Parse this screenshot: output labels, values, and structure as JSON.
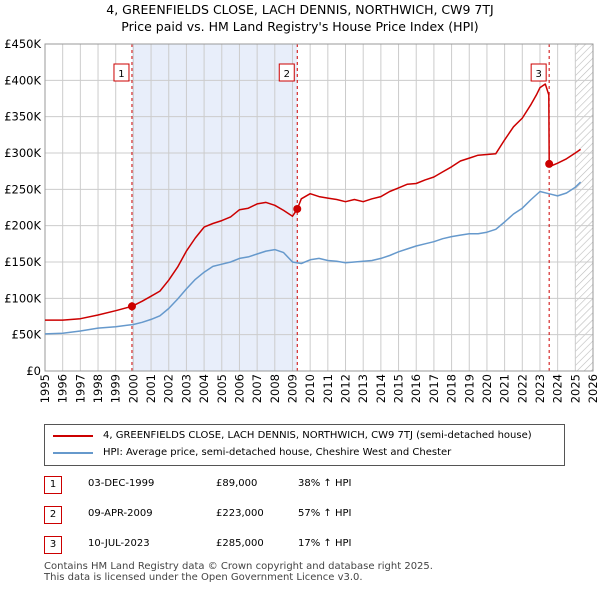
{
  "title_line1": "4, GREENFIELDS CLOSE, LACH DENNIS, NORTHWICH, CW9 7TJ",
  "title_line2": "Price paid vs. HM Land Registry's House Price Index (HPI)",
  "colors": {
    "property": "#cc0000",
    "hpi": "#6699cc",
    "shade": "#e8eefa",
    "hatch": "#bbbbbb",
    "grid": "#cccccc"
  },
  "chart_data": {
    "type": "line",
    "title": "4, GREENFIELDS CLOSE, LACH DENNIS, NORTHWICH, CW9 7TJ",
    "subtitle": "Price paid vs. HM Land Registry's House Price Index (HPI)",
    "xlim": [
      1995,
      2026
    ],
    "ylim": [
      0,
      450000
    ],
    "yticks": [
      0,
      50000,
      100000,
      150000,
      200000,
      250000,
      300000,
      350000,
      400000,
      450000
    ],
    "ytick_labels": [
      "£0",
      "£50K",
      "£100K",
      "£150K",
      "£200K",
      "£250K",
      "£300K",
      "£350K",
      "£400K",
      "£450K"
    ],
    "xticks": [
      1995,
      1996,
      1997,
      1998,
      1999,
      2000,
      2001,
      2002,
      2003,
      2004,
      2005,
      2006,
      2007,
      2008,
      2009,
      2010,
      2011,
      2012,
      2013,
      2014,
      2015,
      2016,
      2017,
      2018,
      2019,
      2020,
      2021,
      2022,
      2023,
      2024,
      2025,
      2026
    ],
    "xtick_labels": [
      "1995",
      "1996",
      "1997",
      "1998",
      "1999",
      "2000",
      "2001",
      "2002",
      "2003",
      "2004",
      "2005",
      "2006",
      "2007",
      "2008",
      "2009",
      "2010",
      "2011",
      "2012",
      "2013",
      "2014",
      "2015",
      "2016",
      "2017",
      "2018",
      "2019",
      "2020",
      "2021",
      "2022",
      "2023",
      "2024",
      "2025",
      "2026"
    ],
    "shaded_range": [
      1999.92,
      2009.27
    ],
    "hatched_from": 2025.0,
    "series": [
      {
        "name": "4, GREENFIELDS CLOSE, LACH DENNIS, NORTHWICH, CW9 7TJ (semi-detached house)",
        "color": "#cc0000",
        "x": [
          1995.0,
          1996.0,
          1997.0,
          1998.0,
          1999.0,
          1999.92,
          2000.5,
          2001.0,
          2001.5,
          2002.0,
          2002.5,
          2003.0,
          2003.5,
          2004.0,
          2004.5,
          2005.0,
          2005.5,
          2006.0,
          2006.5,
          2007.0,
          2007.5,
          2008.0,
          2008.5,
          2009.0,
          2009.27,
          2009.5,
          2010.0,
          2010.5,
          2011.0,
          2011.5,
          2012.0,
          2012.5,
          2013.0,
          2013.5,
          2014.0,
          2014.5,
          2015.0,
          2015.5,
          2016.0,
          2016.5,
          2017.0,
          2017.5,
          2018.0,
          2018.5,
          2019.0,
          2019.5,
          2020.0,
          2020.5,
          2021.0,
          2021.5,
          2022.0,
          2022.5,
          2022.8,
          2023.0,
          2023.3,
          2023.5,
          2023.52,
          2023.7,
          2024.0,
          2024.5,
          2025.0,
          2025.3
        ],
        "values": [
          70000,
          70000,
          72000,
          77000,
          83000,
          89000,
          96000,
          103000,
          110000,
          125000,
          143000,
          165000,
          183000,
          198000,
          203000,
          207000,
          212000,
          222000,
          224000,
          230000,
          232000,
          228000,
          221000,
          213000,
          223000,
          237000,
          244000,
          240000,
          238000,
          236000,
          233000,
          236000,
          233000,
          237000,
          240000,
          247000,
          252000,
          257000,
          258000,
          263000,
          267000,
          274000,
          281000,
          289000,
          293000,
          297000,
          298000,
          299000,
          318000,
          336000,
          348000,
          367000,
          380000,
          390000,
          395000,
          380000,
          285000,
          283000,
          286000,
          292000,
          300000,
          305000
        ]
      },
      {
        "name": "HPI: Average price, semi-detached house, Cheshire West and Chester",
        "color": "#6699cc",
        "x": [
          1995.0,
          1996.0,
          1997.0,
          1998.0,
          1999.0,
          2000.0,
          2000.5,
          2001.0,
          2001.5,
          2002.0,
          2002.5,
          2003.0,
          2003.5,
          2004.0,
          2004.5,
          2005.0,
          2005.5,
          2006.0,
          2006.5,
          2007.0,
          2007.5,
          2008.0,
          2008.5,
          2009.0,
          2009.5,
          2010.0,
          2010.5,
          2011.0,
          2011.5,
          2012.0,
          2012.5,
          2013.0,
          2013.5,
          2014.0,
          2014.5,
          2015.0,
          2015.5,
          2016.0,
          2016.5,
          2017.0,
          2017.5,
          2018.0,
          2018.5,
          2019.0,
          2019.5,
          2020.0,
          2020.5,
          2021.0,
          2021.5,
          2022.0,
          2022.5,
          2023.0,
          2023.5,
          2024.0,
          2024.5,
          2025.0,
          2025.3
        ],
        "values": [
          51000,
          52000,
          55000,
          59000,
          61000,
          64000,
          67000,
          71000,
          76000,
          86000,
          99000,
          113000,
          126000,
          136000,
          144000,
          147000,
          150000,
          155000,
          157000,
          161000,
          165000,
          167000,
          163000,
          150000,
          148000,
          153000,
          155000,
          152000,
          151000,
          149000,
          150000,
          151000,
          152000,
          155000,
          159000,
          164000,
          168000,
          172000,
          175000,
          178000,
          182000,
          185000,
          187000,
          189000,
          189000,
          191000,
          195000,
          205000,
          216000,
          224000,
          236000,
          247000,
          244000,
          241000,
          245000,
          253000,
          260000
        ]
      }
    ],
    "sales": [
      {
        "id": "1",
        "x": 1999.92,
        "value": 89000,
        "date": "03-DEC-1999",
        "price": "£89,000",
        "hpi": "38% ↑ HPI"
      },
      {
        "id": "2",
        "x": 2009.27,
        "value": 223000,
        "date": "09-APR-2009",
        "price": "£223,000",
        "hpi": "57% ↑ HPI"
      },
      {
        "id": "3",
        "x": 2023.52,
        "value": 285000,
        "date": "10-JUL-2023",
        "price": "£285,000",
        "hpi": "17% ↑ HPI"
      }
    ],
    "legend": [
      "4, GREENFIELDS CLOSE, LACH DENNIS, NORTHWICH, CW9 7TJ (semi-detached house)",
      "HPI: Average price, semi-detached house, Cheshire West and Chester"
    ]
  },
  "footer_line1": "Contains HM Land Registry data © Crown copyright and database right 2025.",
  "footer_line2": "This data is licensed under the Open Government Licence v3.0."
}
